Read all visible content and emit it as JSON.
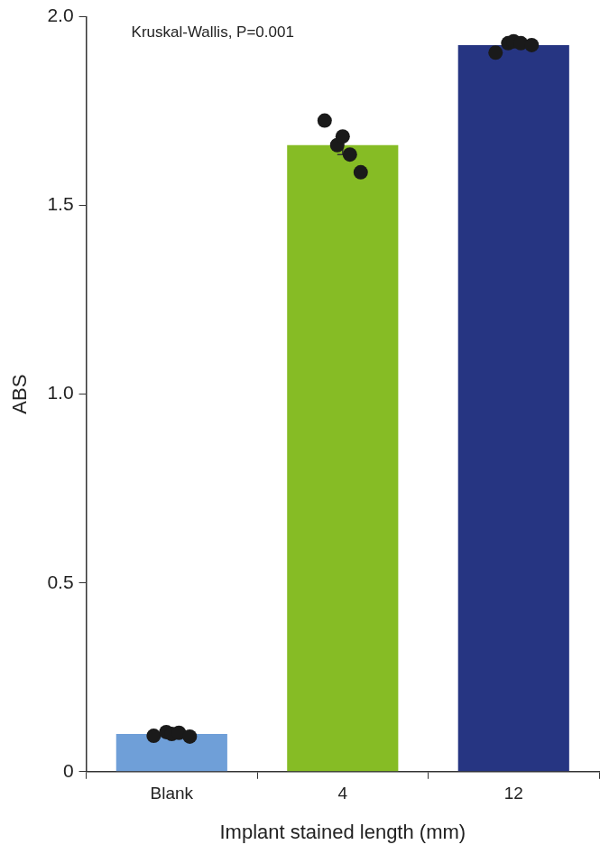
{
  "chart_data": {
    "type": "bar",
    "categories": [
      "Blank",
      "4",
      "12"
    ],
    "values": [
      0.1,
      1.66,
      1.925
    ],
    "errors": [
      0.003,
      0.025,
      0.006
    ],
    "points": [
      [
        0.095,
        0.105,
        0.1,
        0.103,
        0.093
      ],
      [
        1.725,
        1.66,
        1.683,
        1.635,
        1.588
      ],
      [
        1.905,
        1.93,
        1.935,
        1.93,
        1.925
      ]
    ],
    "colors": [
      "#6f9fd8",
      "#86bc25",
      "#263582"
    ],
    "x_label": "Implant stained length (mm)",
    "y_label": "ABS",
    "annotation": "Kruskal-Wallis, P=0.001",
    "ylim": [
      0,
      2
    ],
    "yticks": [
      0,
      0.5,
      {
        "value": 1,
        "label": "1.0"
      },
      1.5,
      {
        "value": 2,
        "label": "2.0"
      }
    ],
    "grid": false
  }
}
